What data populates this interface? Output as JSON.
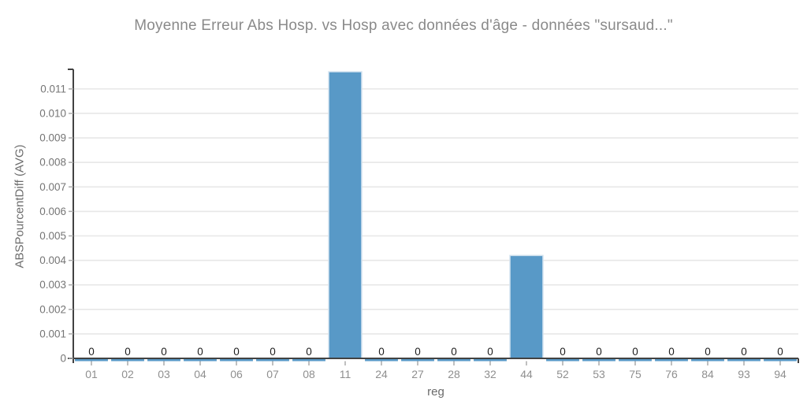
{
  "chart_data": {
    "type": "bar",
    "title": "Moyenne Erreur Abs Hosp. vs Hosp avec données d'âge - données \"sursaud...\"",
    "xlabel": "reg",
    "ylabel": "ABSPourcentDiff (AVG)",
    "categories": [
      "01",
      "02",
      "03",
      "04",
      "06",
      "07",
      "08",
      "11",
      "24",
      "27",
      "28",
      "32",
      "44",
      "52",
      "53",
      "75",
      "76",
      "84",
      "93",
      "94"
    ],
    "values": [
      0,
      0,
      0,
      0,
      0,
      0,
      0,
      0.0117,
      0,
      0,
      0,
      0,
      0.0042,
      0,
      0,
      0,
      0,
      0,
      0,
      0
    ],
    "bar_value_labels": [
      "0",
      "0",
      "0",
      "0",
      "0",
      "0",
      "0",
      "",
      "0",
      "0",
      "0",
      "0",
      "",
      "0",
      "0",
      "0",
      "0",
      "0",
      "0",
      "0"
    ],
    "ylim": [
      0,
      0.0118
    ],
    "y_ticks": [
      0,
      0.001,
      0.002,
      0.003,
      0.004,
      0.005,
      0.006,
      0.007,
      0.008,
      0.009,
      0.01,
      0.011
    ],
    "y_tick_labels": [
      "0",
      "0.001",
      "0.002",
      "0.003",
      "0.004",
      "0.005",
      "0.006",
      "0.007",
      "0.008",
      "0.009",
      "0.010",
      "0.011"
    ],
    "grid": "horizontal-only",
    "legend": "none",
    "colors": {
      "background": "#ffffff",
      "bar_fill": "#5899c7",
      "bar_stroke": "#cfe0ee",
      "gridline": "#e7e7e7",
      "axis_line": "#424242",
      "tick_mark": "#aaaaaa",
      "y_tick_label": "#757575",
      "x_tick_label": "#8f8f8f",
      "data_label": "#1c1c1c",
      "axis_title": "#6b6b6b",
      "title": "#8a8a8a"
    }
  }
}
